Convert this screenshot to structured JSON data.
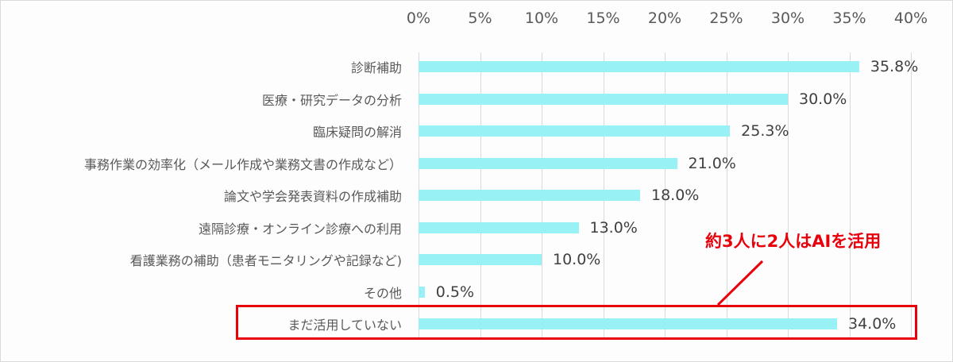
{
  "chart_data": {
    "type": "bar",
    "orientation": "horizontal",
    "title": "",
    "xlabel": "",
    "ylabel": "",
    "xlim": [
      0,
      40
    ],
    "x_ticks": [
      "0%",
      "5%",
      "10%",
      "15%",
      "20%",
      "25%",
      "30%",
      "35%",
      "40%"
    ],
    "grid": true,
    "legend": null,
    "bar_color": "#97f1f5",
    "categories": [
      "診断補助",
      "医療・研究データの分析",
      "臨床疑問の解消",
      "事務作業の効率化（メール作成や業務文書の作成など）",
      "論文や学会発表資料の作成補助",
      "遠隔診療・オンライン診療への利用",
      "看護業務の補助（患者モニタリングや記録など)",
      "その他",
      "まだ活用していない"
    ],
    "values": [
      35.8,
      30.0,
      25.3,
      21.0,
      18.0,
      13.0,
      10.0,
      0.5,
      34.0
    ],
    "value_labels": [
      "35.8%",
      "30.0%",
      "25.3%",
      "21.0%",
      "18.0%",
      "13.0%",
      "10.0%",
      "0.5%",
      "34.0%"
    ],
    "annotations": [
      {
        "text": "約3人に2人はAIを活用",
        "color": "#e8000b",
        "target": "まだ活用していない",
        "style": "red box with leader line"
      }
    ]
  },
  "annotation": {
    "callout_text": "約3人に2人はAIを活用",
    "color": "#e8000b"
  }
}
